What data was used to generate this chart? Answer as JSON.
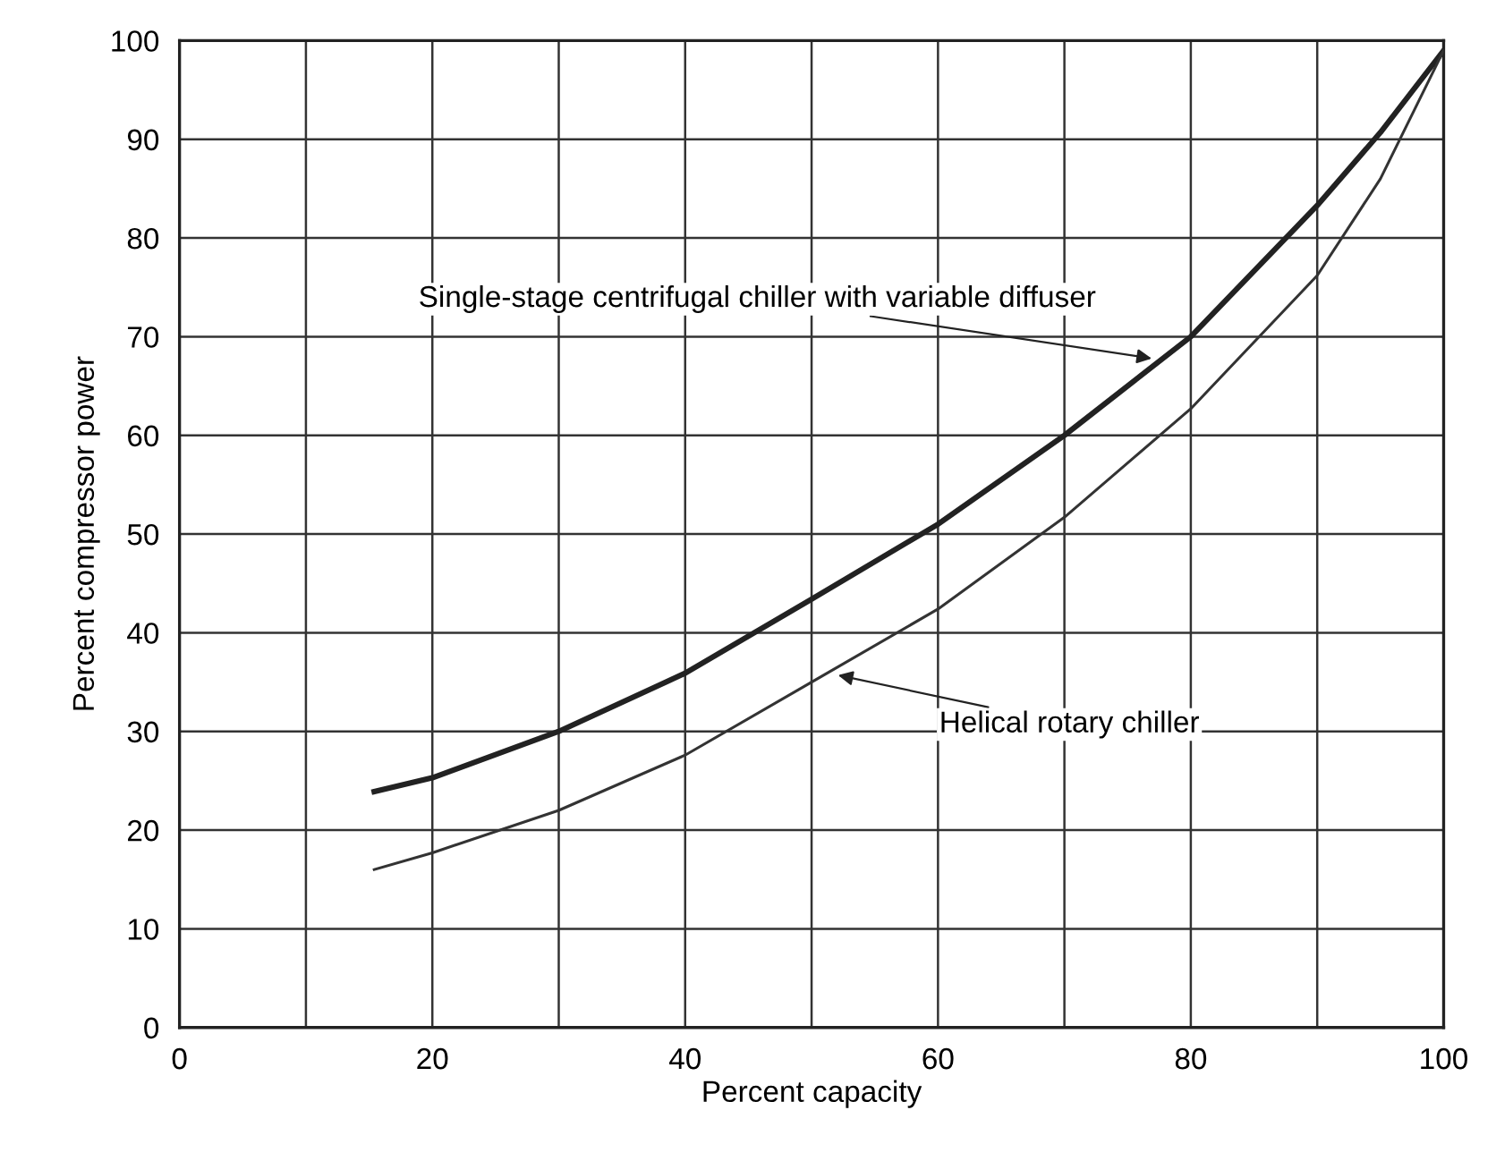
{
  "chart_data": {
    "type": "line",
    "xlabel": "Percent capacity",
    "ylabel": "Percent compressor power",
    "xlim": [
      0,
      100
    ],
    "ylim": [
      0,
      100
    ],
    "xticks": [
      0,
      {
        "value": 10,
        "label": null
      },
      20,
      {
        "value": 30,
        "label": null
      },
      40,
      {
        "value": 50,
        "label": null
      },
      60,
      {
        "value": 70,
        "label": null
      },
      80,
      {
        "value": 90,
        "label": null
      },
      100
    ],
    "yticks": [
      0,
      10,
      20,
      30,
      40,
      50,
      60,
      70,
      80,
      90,
      100
    ],
    "grid": true,
    "legend": false,
    "marker": "none",
    "line_style": "solid",
    "series": [
      {
        "color": "#222222",
        "x": [
          15.4,
          20,
          30,
          40,
          50,
          60,
          70,
          80,
          90,
          95,
          100
        ],
        "values": [
          23.9,
          25.3,
          30,
          35.9,
          43.4,
          51,
          60,
          70,
          83.3,
          90.7,
          99
        ]
      },
      {
        "color": "#333333",
        "x": [
          15.4,
          20,
          30,
          40,
          50,
          60,
          70,
          80,
          90,
          95,
          100
        ],
        "values": [
          16,
          17.7,
          22,
          27.6,
          35,
          42.4,
          51.7,
          62.7,
          76.2,
          86,
          99
        ]
      }
    ],
    "annotations": [
      {
        "text": "Single-stage centrifugal chiller with variable diffuser",
        "x": 76.9,
        "y": 67.8
      },
      {
        "text": "Helical rotary chiller",
        "x": 52.1,
        "y": 35.7
      }
    ]
  }
}
